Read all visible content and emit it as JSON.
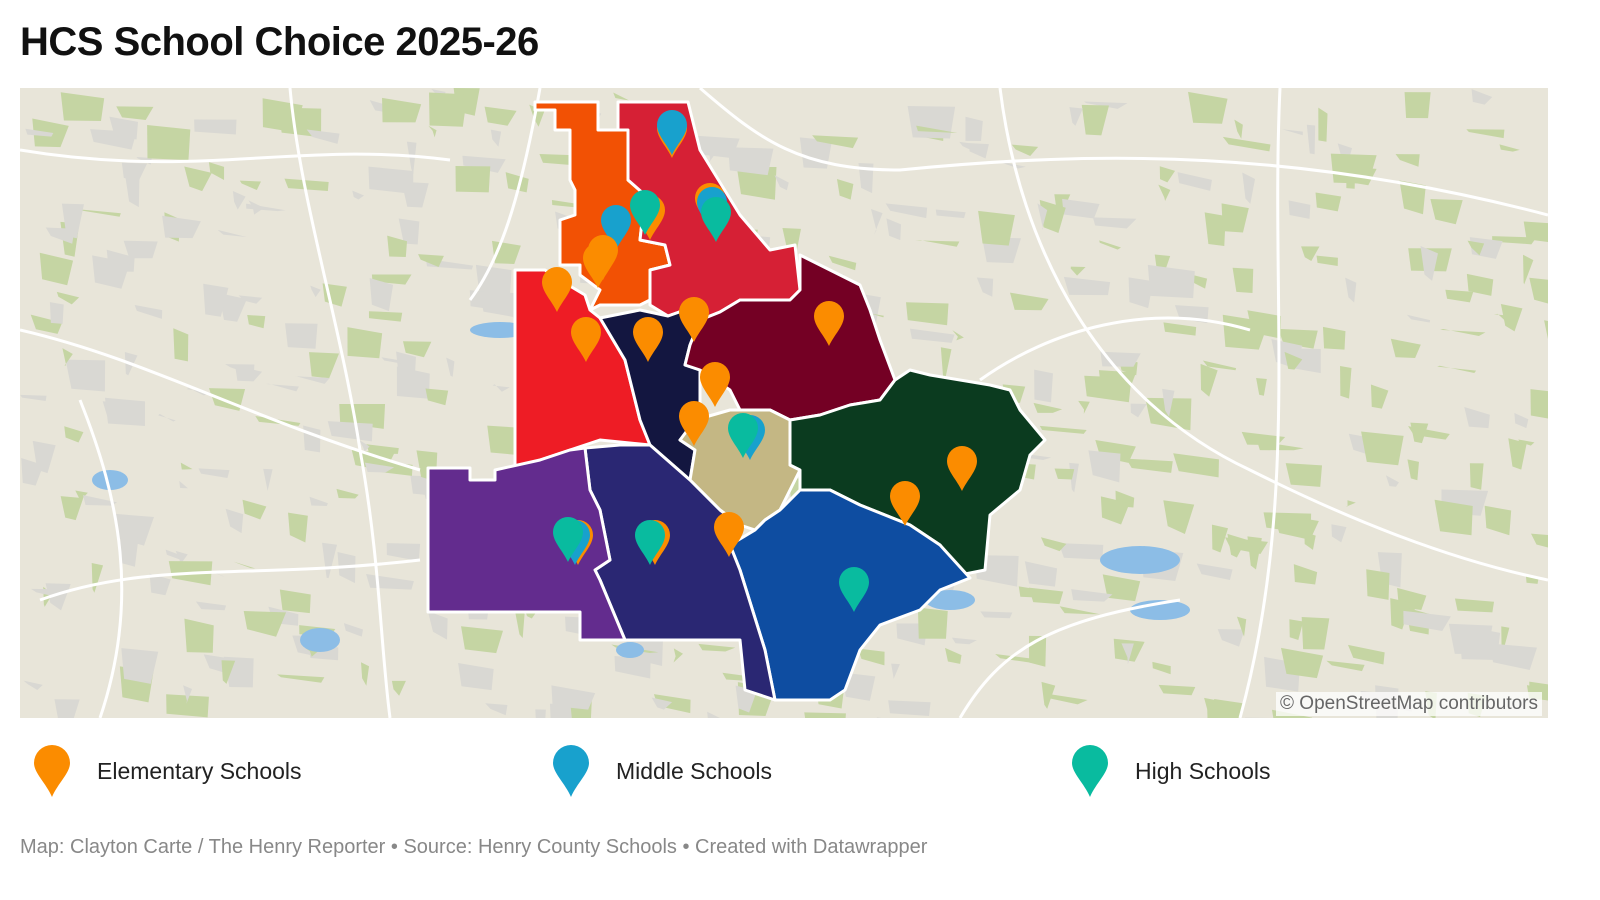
{
  "title": "HCS School Choice 2025-26",
  "map": {
    "attribution": "© OpenStreetMap contributors",
    "basemap_colors": {
      "land": "#e8e5d9",
      "urban": "#d9d8d3",
      "forest": "#c5d5a3",
      "water": "#8cbde6",
      "roads": "#ffffff"
    },
    "district_colors": [
      "#f25104",
      "#d62035",
      "#ee1c25",
      "#131640",
      "#740024",
      "#c4b784",
      "#0b3b1f",
      "#0e4da1",
      "#2a2773",
      "#632c8e"
    ]
  },
  "legend": [
    {
      "label": "Elementary Schools",
      "color": "#fb8c00",
      "icon": "map-pin-icon"
    },
    {
      "label": "Middle Schools",
      "color": "#18a1cd",
      "icon": "map-pin-icon"
    },
    {
      "label": "High Schools",
      "color": "#09bb9f",
      "icon": "map-pin-icon"
    }
  ],
  "footer": "Map: Clayton Carte / The Henry Reporter • Source: Henry County Schools • Created with Datawrapper"
}
